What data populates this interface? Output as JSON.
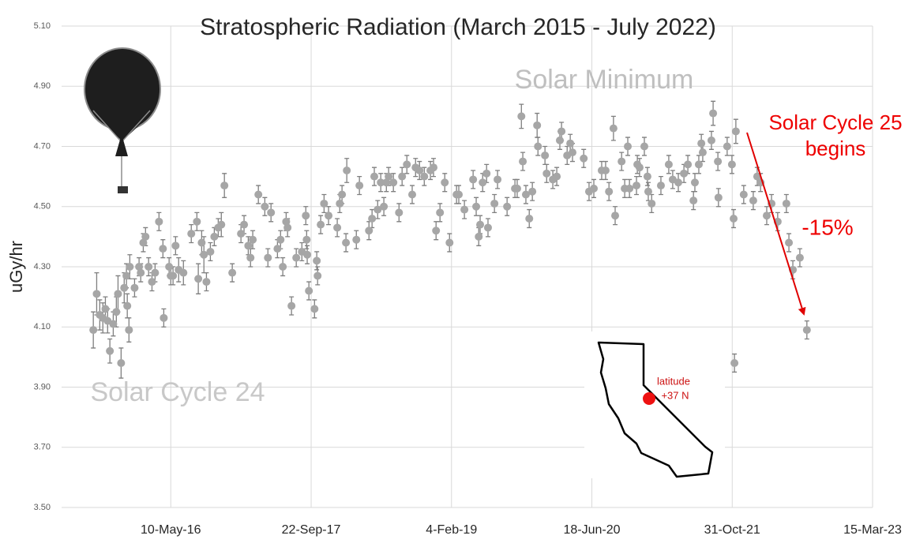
{
  "chart_data": {
    "type": "scatter",
    "title": "Stratospheric Radiation (March 2015 - July 2022)",
    "y_label": "uGy/hr",
    "annotations": {
      "solar_minimum": "Solar Minimum",
      "solar_cycle_24": "Solar Cycle 24",
      "solar_cycle_25": [
        "Solar Cycle 25",
        "begins"
      ],
      "drop": "-15%",
      "latitude": [
        "latitude",
        "+37 N"
      ]
    },
    "color": "#a6a6a6",
    "error_color": "#7f7f7f",
    "grid": true,
    "xlim": [
      "2015-04-17",
      "2023-03-15"
    ],
    "xticks": [
      {
        "value": "2016-05-10",
        "label": "10-May-16"
      },
      {
        "value": "2017-09-22",
        "label": "22-Sep-17"
      },
      {
        "value": "2019-02-04",
        "label": "4-Feb-19"
      },
      {
        "value": "2020-06-18",
        "label": "18-Jun-20"
      },
      {
        "value": "2021-10-31",
        "label": "31-Oct-21"
      },
      {
        "value": "2023-03-15",
        "label": "15-Mar-23"
      }
    ],
    "ylim": [
      3.5,
      5.1
    ],
    "yticks": [
      {
        "value": 3.5,
        "label": "3.50"
      },
      {
        "value": 3.7,
        "label": "3.70"
      },
      {
        "value": 3.9,
        "label": "3.90"
      },
      {
        "value": 4.1,
        "label": "4.10"
      },
      {
        "value": 4.3,
        "label": "4.30"
      },
      {
        "value": 4.5,
        "label": "4.50"
      },
      {
        "value": 4.7,
        "label": "4.70"
      },
      {
        "value": 4.9,
        "label": "4.90"
      },
      {
        "value": 5.1,
        "label": "5.10"
      }
    ],
    "x": [
      "2015-08-08",
      "2015-08-20",
      "2015-08-31",
      "2015-09-11",
      "2015-09-20",
      "2015-09-28",
      "2015-10-06",
      "2015-10-18",
      "2015-10-29",
      "2015-11-04",
      "2015-11-15",
      "2015-11-26",
      "2015-12-04",
      "2015-12-07",
      "2015-12-13",
      "2015-12-16",
      "2016-01-02",
      "2016-01-18",
      "2016-01-24",
      "2016-02-02",
      "2016-02-10",
      "2016-02-21",
      "2016-03-04",
      "2016-03-15",
      "2016-03-29",
      "2016-04-12",
      "2016-04-15",
      "2016-05-04",
      "2016-05-10",
      "2016-05-18",
      "2016-05-27",
      "2016-06-07",
      "2016-06-24",
      "2016-07-22",
      "2016-08-11",
      "2016-08-16",
      "2016-08-28",
      "2016-09-05",
      "2016-09-14",
      "2016-09-28",
      "2016-10-12",
      "2016-10-26",
      "2016-11-06",
      "2016-11-17",
      "2016-12-15",
      "2017-01-15",
      "2017-01-26",
      "2017-02-10",
      "2017-02-18",
      "2017-02-26",
      "2017-03-18",
      "2017-04-10",
      "2017-04-21",
      "2017-05-02",
      "2017-05-25",
      "2017-06-05",
      "2017-06-13",
      "2017-06-25",
      "2017-06-30",
      "2017-07-14",
      "2017-07-31",
      "2017-08-20",
      "2017-09-03",
      "2017-09-06",
      "2017-09-08",
      "2017-09-14",
      "2017-10-04",
      "2017-10-12",
      "2017-10-15",
      "2017-10-26",
      "2017-11-07",
      "2017-11-23",
      "2017-12-24",
      "2018-01-02",
      "2018-01-10",
      "2018-01-24",
      "2018-01-27",
      "2018-03-02",
      "2018-03-13",
      "2018-04-16",
      "2018-04-27",
      "2018-05-05",
      "2018-05-17",
      "2018-05-28",
      "2018-06-08",
      "2018-06-17",
      "2018-06-25",
      "2018-07-12",
      "2018-08-01",
      "2018-08-12",
      "2018-08-29",
      "2018-09-17",
      "2018-09-29",
      "2018-10-13",
      "2018-10-30",
      "2018-11-21",
      "2018-12-02",
      "2018-12-11",
      "2018-12-25",
      "2019-01-11",
      "2019-01-28",
      "2019-02-22",
      "2019-03-02",
      "2019-03-22",
      "2019-04-22",
      "2019-05-03",
      "2019-05-12",
      "2019-05-17",
      "2019-05-26",
      "2019-06-09",
      "2019-06-14",
      "2019-07-07",
      "2019-07-18",
      "2019-08-21",
      "2019-09-18",
      "2019-09-26",
      "2019-10-11",
      "2019-10-16",
      "2019-10-27",
      "2019-11-08",
      "2019-11-19",
      "2019-12-06",
      "2019-12-09",
      "2020-01-03",
      "2020-01-09",
      "2020-01-31",
      "2020-02-14",
      "2020-02-25",
      "2020-03-02",
      "2020-03-22",
      "2020-04-02",
      "2020-04-10",
      "2020-05-20",
      "2020-06-08",
      "2020-06-25",
      "2020-07-23",
      "2020-08-06",
      "2020-08-18",
      "2020-09-03",
      "2020-09-09",
      "2020-10-02",
      "2020-10-13",
      "2020-10-24",
      "2020-10-30",
      "2020-11-24",
      "2020-11-27",
      "2020-12-05",
      "2020-12-22",
      "2021-01-02",
      "2021-01-05",
      "2021-01-17",
      "2021-02-19",
      "2021-03-19",
      "2021-04-02",
      "2021-04-22",
      "2021-05-12",
      "2021-05-26",
      "2021-06-15",
      "2021-06-20",
      "2021-07-04",
      "2021-07-13",
      "2021-07-18",
      "2021-08-18",
      "2021-08-24",
      "2021-09-10",
      "2021-09-12",
      "2021-10-13",
      "2021-10-30",
      "2021-11-05",
      "2021-11-08",
      "2021-11-13",
      "2021-12-11",
      "2022-01-14",
      "2022-01-28",
      "2022-02-09",
      "2022-03-03",
      "2022-03-20",
      "2022-04-11",
      "2022-05-12",
      "2022-05-21",
      "2022-06-04",
      "2022-06-29",
      "2022-07-24"
    ],
    "values": [
      4.09,
      4.21,
      4.14,
      4.13,
      4.16,
      4.12,
      4.02,
      4.11,
      4.15,
      4.21,
      3.98,
      4.23,
      4.27,
      4.17,
      4.09,
      4.3,
      4.23,
      4.3,
      4.28,
      4.38,
      4.4,
      4.3,
      4.25,
      4.28,
      4.45,
      4.36,
      4.13,
      4.3,
      4.27,
      4.27,
      4.37,
      4.29,
      4.28,
      4.41,
      4.45,
      4.26,
      4.38,
      4.34,
      4.25,
      4.35,
      4.4,
      4.43,
      4.44,
      4.57,
      4.28,
      4.41,
      4.44,
      4.37,
      4.33,
      4.39,
      4.54,
      4.5,
      4.33,
      4.48,
      4.36,
      4.39,
      4.3,
      4.45,
      4.43,
      4.17,
      4.33,
      4.35,
      4.47,
      4.39,
      4.34,
      4.22,
      4.16,
      4.32,
      4.27,
      4.44,
      4.51,
      4.47,
      4.43,
      4.51,
      4.54,
      4.38,
      4.62,
      4.39,
      4.57,
      4.42,
      4.46,
      4.6,
      4.49,
      4.58,
      4.5,
      4.58,
      4.6,
      4.58,
      4.48,
      4.6,
      4.64,
      4.54,
      4.63,
      4.62,
      4.6,
      4.62,
      4.63,
      4.42,
      4.48,
      4.58,
      4.38,
      4.54,
      4.54,
      4.49,
      4.59,
      4.5,
      4.4,
      4.44,
      4.58,
      4.61,
      4.43,
      4.51,
      4.59,
      4.5,
      4.56,
      4.56,
      4.8,
      4.65,
      4.54,
      4.46,
      4.55,
      4.77,
      4.7,
      4.67,
      4.61,
      4.59,
      4.6,
      4.72,
      4.75,
      4.67,
      4.71,
      4.68,
      4.66,
      4.55,
      4.56,
      4.62,
      4.62,
      4.55,
      4.76,
      4.47,
      4.65,
      4.56,
      4.7,
      4.56,
      4.57,
      4.64,
      4.63,
      4.7,
      4.6,
      4.55,
      4.51,
      4.57,
      4.64,
      4.59,
      4.58,
      4.61,
      4.64,
      4.52,
      4.58,
      4.64,
      4.71,
      4.68,
      4.72,
      4.81,
      4.65,
      4.53,
      4.7,
      4.64,
      4.46,
      3.98,
      4.75,
      4.54,
      4.52,
      4.6,
      4.58,
      4.47,
      4.51,
      4.45,
      4.51,
      4.38,
      4.29,
      4.33,
      4.09
    ],
    "errors": [
      0.06,
      0.07,
      0.05,
      0.05,
      0.04,
      0.04,
      0.04,
      0.04,
      0.05,
      0.06,
      0.05,
      0.05,
      0.04,
      0.04,
      0.04,
      0.04,
      0.03,
      0.03,
      0.03,
      0.03,
      0.03,
      0.03,
      0.03,
      0.03,
      0.03,
      0.03,
      0.03,
      0.03,
      0.03,
      0.03,
      0.03,
      0.04,
      0.04,
      0.03,
      0.03,
      0.05,
      0.04,
      0.06,
      0.03,
      0.03,
      0.03,
      0.03,
      0.04,
      0.04,
      0.03,
      0.03,
      0.03,
      0.03,
      0.03,
      0.03,
      0.03,
      0.03,
      0.03,
      0.03,
      0.03,
      0.03,
      0.03,
      0.03,
      0.03,
      0.03,
      0.03,
      0.03,
      0.03,
      0.03,
      0.03,
      0.03,
      0.03,
      0.03,
      0.03,
      0.03,
      0.03,
      0.03,
      0.03,
      0.03,
      0.03,
      0.03,
      0.04,
      0.03,
      0.03,
      0.03,
      0.03,
      0.03,
      0.03,
      0.03,
      0.03,
      0.03,
      0.03,
      0.03,
      0.03,
      0.03,
      0.03,
      0.03,
      0.03,
      0.03,
      0.03,
      0.03,
      0.03,
      0.03,
      0.03,
      0.03,
      0.03,
      0.03,
      0.03,
      0.03,
      0.03,
      0.03,
      0.03,
      0.03,
      0.03,
      0.03,
      0.03,
      0.03,
      0.03,
      0.03,
      0.03,
      0.03,
      0.04,
      0.03,
      0.03,
      0.03,
      0.03,
      0.04,
      0.03,
      0.03,
      0.03,
      0.03,
      0.03,
      0.03,
      0.03,
      0.03,
      0.03,
      0.03,
      0.03,
      0.03,
      0.03,
      0.03,
      0.03,
      0.03,
      0.04,
      0.03,
      0.03,
      0.03,
      0.03,
      0.03,
      0.03,
      0.03,
      0.03,
      0.03,
      0.03,
      0.03,
      0.03,
      0.03,
      0.03,
      0.03,
      0.03,
      0.03,
      0.03,
      0.03,
      0.03,
      0.03,
      0.03,
      0.03,
      0.03,
      0.04,
      0.03,
      0.03,
      0.03,
      0.03,
      0.03,
      0.03,
      0.04,
      0.03,
      0.03,
      0.03,
      0.03,
      0.03,
      0.03,
      0.03,
      0.03,
      0.03,
      0.03,
      0.03,
      0.03
    ]
  }
}
